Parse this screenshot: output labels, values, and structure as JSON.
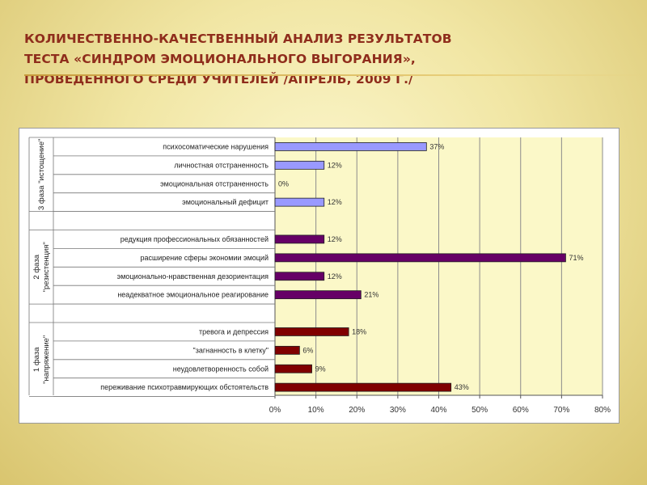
{
  "slide": {
    "title_lines": [
      "КОЛИЧЕСТВЕННО-КАЧЕСТВЕННЫЙ АНАЛИЗ РЕЗУЛЬТАТОВ",
      "ТЕСТА «СИНДРОМ ЭМОЦИОНАЛЬНОГО ВЫГОРАНИЯ»,",
      "ПРОВЕДЕННОГО СРЕДИ УЧИТЕЛЕЙ /АПРЕЛЬ, 2009 Г./"
    ]
  },
  "chart_data": {
    "type": "bar",
    "orientation": "horizontal",
    "xlim": [
      0,
      80
    ],
    "x_ticks": [
      "0%",
      "10%",
      "20%",
      "30%",
      "40%",
      "50%",
      "60%",
      "70%",
      "80%"
    ],
    "grid": true,
    "plot_background": "#fbf8c8",
    "groups": [
      {
        "label_lines": [
          "3 фаза \"истощение\""
        ],
        "color": "#9999ff",
        "items": [
          {
            "label": "психосоматические нарушения",
            "value": 37,
            "value_label": "37%"
          },
          {
            "label": "личностная отстраненность",
            "value": 12,
            "value_label": "12%"
          },
          {
            "label": "эмоциональная отстраненность",
            "value": 0,
            "value_label": "0%"
          },
          {
            "label": "эмоциональный дефицит",
            "value": 12,
            "value_label": "12%"
          }
        ]
      },
      {
        "label_lines": [
          "2 фаза",
          "\"резистенция\""
        ],
        "color": "#660066",
        "items": [
          {
            "label": "редукция профессиональных обязанностей",
            "value": 12,
            "value_label": "12%"
          },
          {
            "label": "расширение сферы экономии эмоций",
            "value": 71,
            "value_label": "71%"
          },
          {
            "label": "эмоционально-нравственная дезориентация",
            "value": 12,
            "value_label": "12%"
          },
          {
            "label": "неадекватное эмоциональное реагирование",
            "value": 21,
            "value_label": "21%"
          }
        ]
      },
      {
        "label_lines": [
          "1 фаза",
          "\"напряжение\""
        ],
        "color": "#800000",
        "items": [
          {
            "label": "тревога и депрессия",
            "value": 18,
            "value_label": "18%"
          },
          {
            "label": "\"загнанность в клетку\"",
            "value": 6,
            "value_label": "6%"
          },
          {
            "label": "неудовлетворенность собой",
            "value": 9,
            "value_label": "9%"
          },
          {
            "label": "переживание психотравмирующих обстоятельств",
            "value": 43,
            "value_label": "43%"
          }
        ]
      }
    ]
  }
}
